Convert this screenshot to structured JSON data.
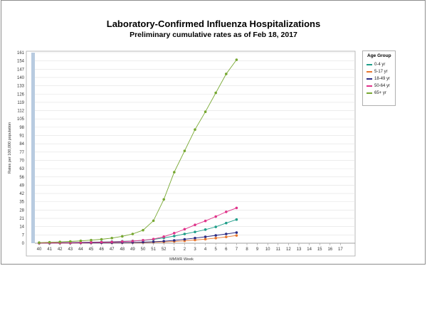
{
  "chart_data": {
    "type": "line",
    "title": "Laboratory-Confirmed Influenza Hospitalizations",
    "subtitle": "Preliminary cumulative rates as of Feb 18, 2017",
    "xlabel": "MMWR Week",
    "ylabel": "Rates per 100,000 population",
    "x_ticks": [
      "40",
      "41",
      "42",
      "43",
      "44",
      "45",
      "46",
      "47",
      "48",
      "49",
      "50",
      "51",
      "52",
      "1",
      "2",
      "3",
      "4",
      "5",
      "6",
      "7",
      "8",
      "9",
      "10",
      "11",
      "12",
      "13",
      "14",
      "15",
      "16",
      "17"
    ],
    "y_ticks": [
      0,
      7,
      14,
      21,
      28,
      35,
      42,
      49,
      56,
      63,
      70,
      77,
      84,
      91,
      98,
      105,
      112,
      119,
      126,
      133,
      140,
      147,
      154,
      161
    ],
    "ylim": [
      0,
      161
    ],
    "legend_title": "Age Group",
    "legend_position": "right",
    "grid": true,
    "series": [
      {
        "name": "0-4 yr",
        "color": "#1f9e89",
        "values": [
          0.2,
          0.3,
          0.5,
          0.6,
          0.8,
          0.9,
          1.1,
          1.3,
          1.6,
          1.9,
          2.4,
          3.2,
          4.5,
          6.0,
          7.8,
          9.5,
          11.5,
          13.8,
          17.0,
          20.0
        ]
      },
      {
        "name": "5-17 yr",
        "color": "#e8772e",
        "values": [
          0.0,
          0.1,
          0.1,
          0.1,
          0.2,
          0.2,
          0.3,
          0.3,
          0.4,
          0.5,
          0.6,
          0.8,
          1.1,
          1.5,
          2.0,
          2.7,
          3.4,
          4.3,
          5.3,
          6.5
        ]
      },
      {
        "name": "18-49 yr",
        "color": "#2b2b83",
        "values": [
          0.1,
          0.1,
          0.2,
          0.2,
          0.3,
          0.3,
          0.4,
          0.5,
          0.6,
          0.7,
          0.9,
          1.2,
          1.7,
          2.4,
          3.3,
          4.3,
          5.4,
          6.6,
          7.8,
          9.0
        ]
      },
      {
        "name": "50-64 yr",
        "color": "#e0338a",
        "values": [
          0.2,
          0.3,
          0.4,
          0.5,
          0.6,
          0.7,
          0.9,
          1.1,
          1.4,
          1.8,
          2.5,
          3.5,
          5.5,
          8.5,
          11.8,
          15.5,
          18.8,
          22.5,
          26.5,
          29.8
        ]
      },
      {
        "name": "65+ yr",
        "color": "#77a832",
        "values": [
          0.5,
          0.8,
          1.1,
          1.5,
          2.0,
          2.6,
          3.3,
          4.3,
          5.8,
          7.8,
          11.0,
          19.0,
          37.0,
          60.0,
          78.0,
          96.0,
          111.0,
          127.0,
          143.0,
          155.0
        ]
      }
    ]
  }
}
